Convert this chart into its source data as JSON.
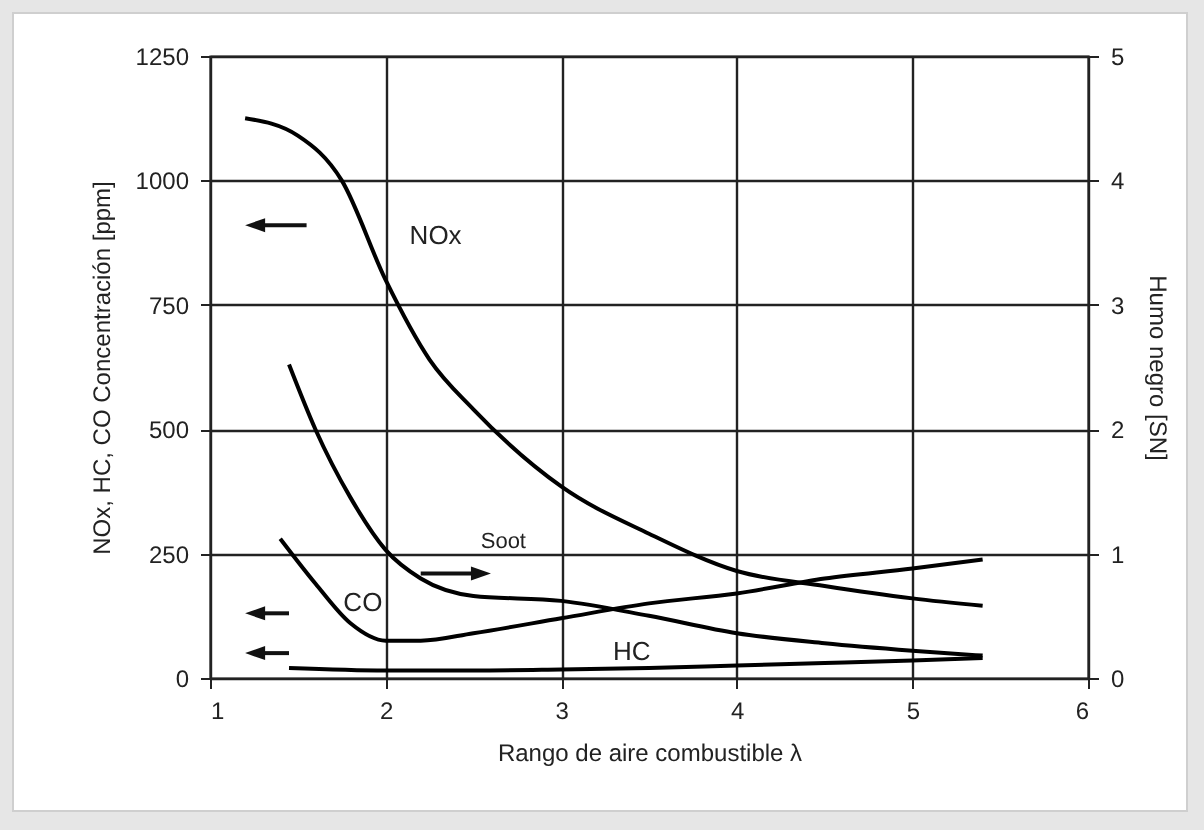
{
  "chart_data": {
    "type": "line",
    "xlabel": "Rango de aire combustible λ",
    "ylabel": "NOx, HC, CO  Concentración [ppm]",
    "y2label": "Humo negro [SN]",
    "xlim": [
      1,
      6
    ],
    "xticks": [
      1,
      2,
      3,
      4,
      5,
      6
    ],
    "ylim": [
      0,
      1250
    ],
    "yticks": [
      0,
      250,
      500,
      750,
      1000,
      1250
    ],
    "y2lim": [
      0,
      5
    ],
    "y2ticks": [
      0,
      1,
      2,
      3,
      4,
      5
    ],
    "grid": true,
    "series": [
      {
        "name": "NOx",
        "color": "#000000",
        "x": [
          1.2,
          1.5,
          1.75,
          2.0,
          2.25,
          2.5,
          3.0,
          3.5,
          4.0,
          4.5,
          5.0,
          5.4
        ],
        "values": [
          1125,
          1090,
          1000,
          800,
          640,
          540,
          385,
          290,
          215,
          185,
          160,
          145
        ]
      },
      {
        "name": "Soot",
        "color": "#000000",
        "axis": "y2",
        "x": [
          1.45,
          1.6,
          1.8,
          2.0,
          2.2,
          2.5,
          3.0,
          3.5,
          4.0,
          4.5,
          5.0,
          5.4
        ],
        "values": [
          2.52,
          2.0,
          1.45,
          1.03,
          0.8,
          0.66,
          0.62,
          0.5,
          0.36,
          0.28,
          0.22,
          0.18
        ]
      },
      {
        "name": "CO",
        "color": "#000000",
        "x": [
          1.4,
          1.6,
          1.8,
          2.0,
          2.2,
          2.5,
          3.0,
          3.5,
          4.0,
          4.5,
          5.0,
          5.4
        ],
        "values": [
          280,
          190,
          110,
          75,
          75,
          90,
          120,
          150,
          170,
          200,
          220,
          238
        ]
      },
      {
        "name": "HC",
        "color": "#000000",
        "x": [
          1.45,
          2.0,
          2.5,
          3.0,
          3.5,
          4.0,
          4.5,
          5.0,
          5.4
        ],
        "values": [
          20,
          15,
          15,
          17,
          20,
          25,
          30,
          35,
          40
        ]
      }
    ]
  }
}
